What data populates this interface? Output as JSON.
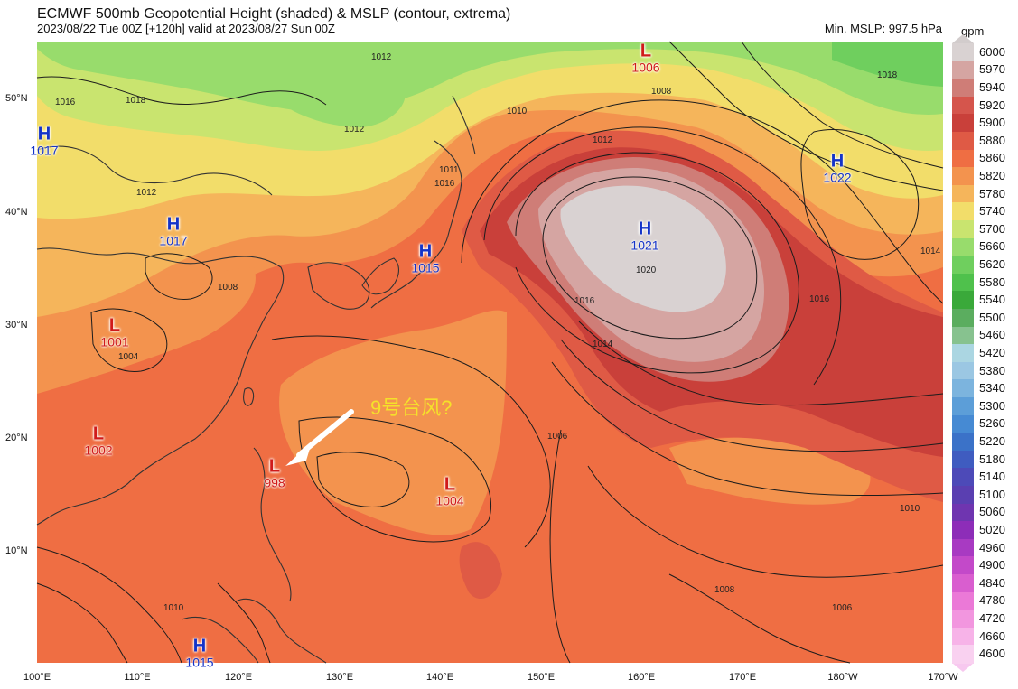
{
  "header": {
    "title": "ECMWF 500mb Geopotential Height (shaded) & MSLP (contour, extrema)",
    "subtitle": "2023/08/22 Tue 00Z [+120h] valid at 2023/08/27 Sun 00Z",
    "min_mslp": "Min. MSLP: 997.5 hPa"
  },
  "legend": {
    "units": "gpm",
    "levels": [
      "6000",
      "5970",
      "5940",
      "5920",
      "5900",
      "5880",
      "5860",
      "5820",
      "5780",
      "5740",
      "5700",
      "5660",
      "5620",
      "5580",
      "5540",
      "5500",
      "5460",
      "5420",
      "5380",
      "5340",
      "5300",
      "5260",
      "5220",
      "5180",
      "5140",
      "5100",
      "5060",
      "5020",
      "4960",
      "4900",
      "4840",
      "4780",
      "4720",
      "4660",
      "4600"
    ],
    "colors": [
      "#d9d2d2",
      "#d5a5a2",
      "#cf7d77",
      "#d5554c",
      "#c9403a",
      "#df5a45",
      "#ef6e43",
      "#f3934e",
      "#f5b55b",
      "#f2dd6a",
      "#c9e46f",
      "#98dc6c",
      "#6fcf5e",
      "#4fc14c",
      "#3aa93a",
      "#5bad5f",
      "#87c28f",
      "#abd6e2",
      "#9bc7e3",
      "#7cb4de",
      "#5c9ed8",
      "#468ad3",
      "#3b72c8",
      "#3f5cc0",
      "#4d4ab8",
      "#5a3fb1",
      "#6f35b0",
      "#8d2db8",
      "#a83ac2",
      "#c349c9",
      "#d95ecf",
      "#eb79d7",
      "#f296df",
      "#f7b3e8",
      "#f9d1f0"
    ]
  },
  "axes": {
    "lat_labels": [
      "50°N",
      "40°N",
      "30°N",
      "20°N",
      "10°N"
    ],
    "lon_labels": [
      "100°E",
      "110°E",
      "120°E",
      "130°E",
      "140°E",
      "150°E",
      "160°E",
      "170°E",
      "180°W",
      "170°W"
    ]
  },
  "pressure_systems": [
    {
      "type": "H",
      "value": "1017",
      "color": "#1433c8"
    },
    {
      "type": "H",
      "value": "1017",
      "color": "#1433c8"
    },
    {
      "type": "H",
      "value": "1015",
      "color": "#1433c8"
    },
    {
      "type": "H",
      "value": "1021",
      "color": "#1433c8"
    },
    {
      "type": "H",
      "value": "1022",
      "color": "#1433c8"
    },
    {
      "type": "H",
      "value": "1015",
      "color": "#1433c8"
    },
    {
      "type": "L",
      "value": "1006",
      "color": "#d01a1a"
    },
    {
      "type": "L",
      "value": "1001",
      "color": "#d01a1a"
    },
    {
      "type": "L",
      "value": "1002",
      "color": "#d01a1a"
    },
    {
      "type": "L",
      "value": "998",
      "color": "#d01a1a"
    },
    {
      "type": "L",
      "value": "1004",
      "color": "#d01a1a"
    }
  ],
  "isobar_labels": [
    "1012",
    "1016",
    "1018",
    "1012",
    "1012",
    "1008",
    "1010",
    "1016",
    "1004",
    "1008",
    "1011",
    "1018",
    "1014",
    "1016",
    "1012",
    "1020",
    "1016",
    "1014",
    "1006",
    "1010",
    "1008",
    "1010",
    "1006"
  ],
  "annotation": {
    "text": "9号台风?",
    "color": "#f5e12a"
  }
}
